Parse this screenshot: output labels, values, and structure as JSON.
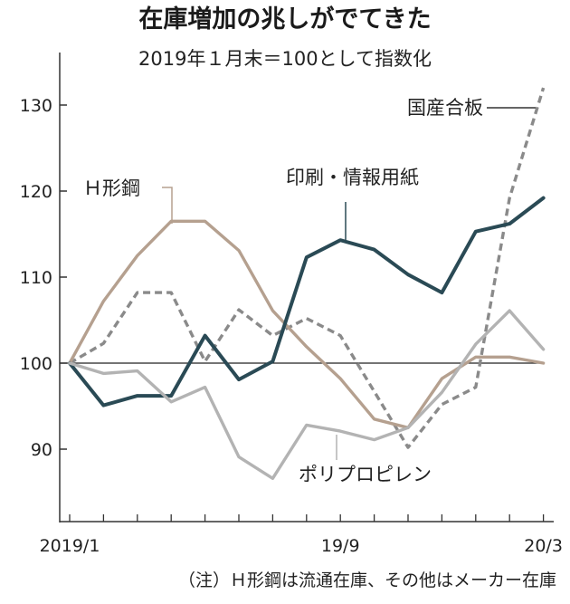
{
  "chart_data": {
    "type": "line",
    "title": "在庫増加の兆しがでてきた",
    "subtitle": "2019年１月末＝100として指数化",
    "note": "（注）Ｈ形鋼は流通在庫、その他はメーカー在庫",
    "ylim": [
      80,
      133
    ],
    "yticks": [
      90,
      100,
      110,
      120,
      130
    ],
    "baseline": 100,
    "grid": false,
    "x_labels": [
      {
        "index": 0,
        "text": "2019/1"
      },
      {
        "index": 8,
        "text": "19/9"
      },
      {
        "index": 14,
        "text": "20/3"
      }
    ],
    "x": [
      "2019/1",
      "2019/2",
      "2019/3",
      "2019/4",
      "2019/5",
      "2019/6",
      "2019/7",
      "2019/8",
      "2019/9",
      "2019/10",
      "2019/11",
      "2019/12",
      "2020/1",
      "2020/2",
      "2020/3"
    ],
    "series": [
      {
        "name": "国産合板",
        "color": "#8a8a8a",
        "dash": true,
        "values": [
          100,
          102.3,
          108.2,
          108.2,
          100.2,
          106.2,
          103.2,
          105.2,
          103.2,
          96.7,
          90.2,
          95.2,
          97.2,
          119.2,
          132
        ]
      },
      {
        "name": "Ｈ形鋼",
        "color": "#b5a08f",
        "dash": false,
        "values": [
          100,
          107.2,
          112.5,
          116.5,
          116.5,
          113.1,
          106.1,
          101.9,
          98.2,
          93.5,
          92.5,
          98.2,
          100.7,
          100.7,
          100
        ]
      },
      {
        "name": "印刷・情報用紙",
        "color": "#2a4a55",
        "dash": false,
        "values": [
          100,
          95.1,
          96.2,
          96.2,
          103.2,
          98.1,
          100.2,
          112.3,
          114.3,
          113.2,
          110.3,
          108.2,
          115.3,
          116.2,
          119.2
        ]
      },
      {
        "name": "ポリプロピレン",
        "color": "#b3b3b3",
        "dash": false,
        "values": [
          100,
          98.8,
          99.1,
          95.5,
          97.2,
          89.1,
          86.6,
          92.8,
          92.1,
          91.1,
          92.5,
          96.6,
          102.2,
          106.1,
          101.6
        ]
      }
    ]
  },
  "series_labels": {
    "plywood": "国産合板",
    "hbeam": "Ｈ形鋼",
    "paper": "印刷・情報用紙",
    "pp": "ポリプロピレン"
  }
}
